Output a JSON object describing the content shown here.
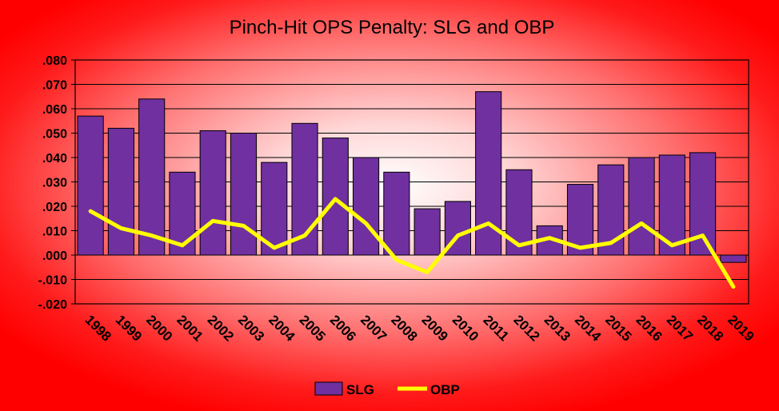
{
  "chart_data": {
    "type": "bar+line",
    "title": "Pinch-Hit OPS Penalty: SLG and OBP",
    "categories": [
      "1998",
      "1999",
      "2000",
      "2001",
      "2002",
      "2003",
      "2004",
      "2005",
      "2006",
      "2007",
      "2008",
      "2009",
      "2010",
      "2011",
      "2012",
      "2013",
      "2014",
      "2015",
      "2016",
      "2017",
      "2018",
      "2019"
    ],
    "series": [
      {
        "name": "SLG",
        "type": "bar",
        "color": "#7030a0",
        "values": [
          0.057,
          0.052,
          0.064,
          0.034,
          0.051,
          0.05,
          0.038,
          0.054,
          0.048,
          0.04,
          0.034,
          0.019,
          0.022,
          0.067,
          0.035,
          0.012,
          0.029,
          0.037,
          0.04,
          0.041,
          0.042,
          -0.003
        ]
      },
      {
        "name": "OBP",
        "type": "line",
        "color": "#ffff00",
        "values": [
          0.018,
          0.011,
          0.008,
          0.004,
          0.014,
          0.012,
          0.003,
          0.008,
          0.023,
          0.013,
          -0.002,
          -0.007,
          0.008,
          0.013,
          0.004,
          0.007,
          0.003,
          0.005,
          0.013,
          0.004,
          0.008,
          -0.013
        ]
      }
    ],
    "ylim": [
      -0.02,
      0.08
    ],
    "yticks": [
      0.08,
      0.07,
      0.06,
      0.05,
      0.04,
      0.03,
      0.02,
      0.01,
      0.0,
      -0.01,
      -0.02
    ],
    "ytick_labels": [
      ".080",
      ".070",
      ".060",
      ".050",
      ".040",
      ".030",
      ".020",
      ".010",
      ".000",
      "-.010",
      "-.020"
    ],
    "xlabel": "",
    "ylabel": "",
    "grid": true,
    "legend": "bottom"
  },
  "colors": {
    "slg": "#7030a0",
    "obp": "#ffff00",
    "grid": "#000000"
  }
}
